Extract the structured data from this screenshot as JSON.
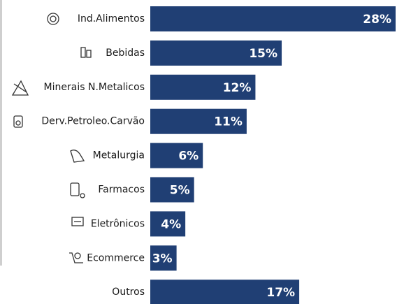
{
  "chart_data": {
    "type": "bar",
    "orientation": "horizontal",
    "categories": [
      "Ind.Alimentos",
      "Bebidas",
      "Minerais N.Metalicos",
      "Derv.Petroleo.Carvão",
      "Metalurgia",
      "Farmacos",
      "Eletrônicos",
      "Ecommerce",
      "Outros"
    ],
    "values": [
      28,
      15,
      12,
      11,
      6,
      5,
      4,
      3,
      17
    ],
    "value_labels": [
      "28%",
      "15%",
      "12%",
      "11%",
      "6%",
      "5%",
      "4%",
      "3%",
      "17%"
    ],
    "color": "#203f74"
  }
}
